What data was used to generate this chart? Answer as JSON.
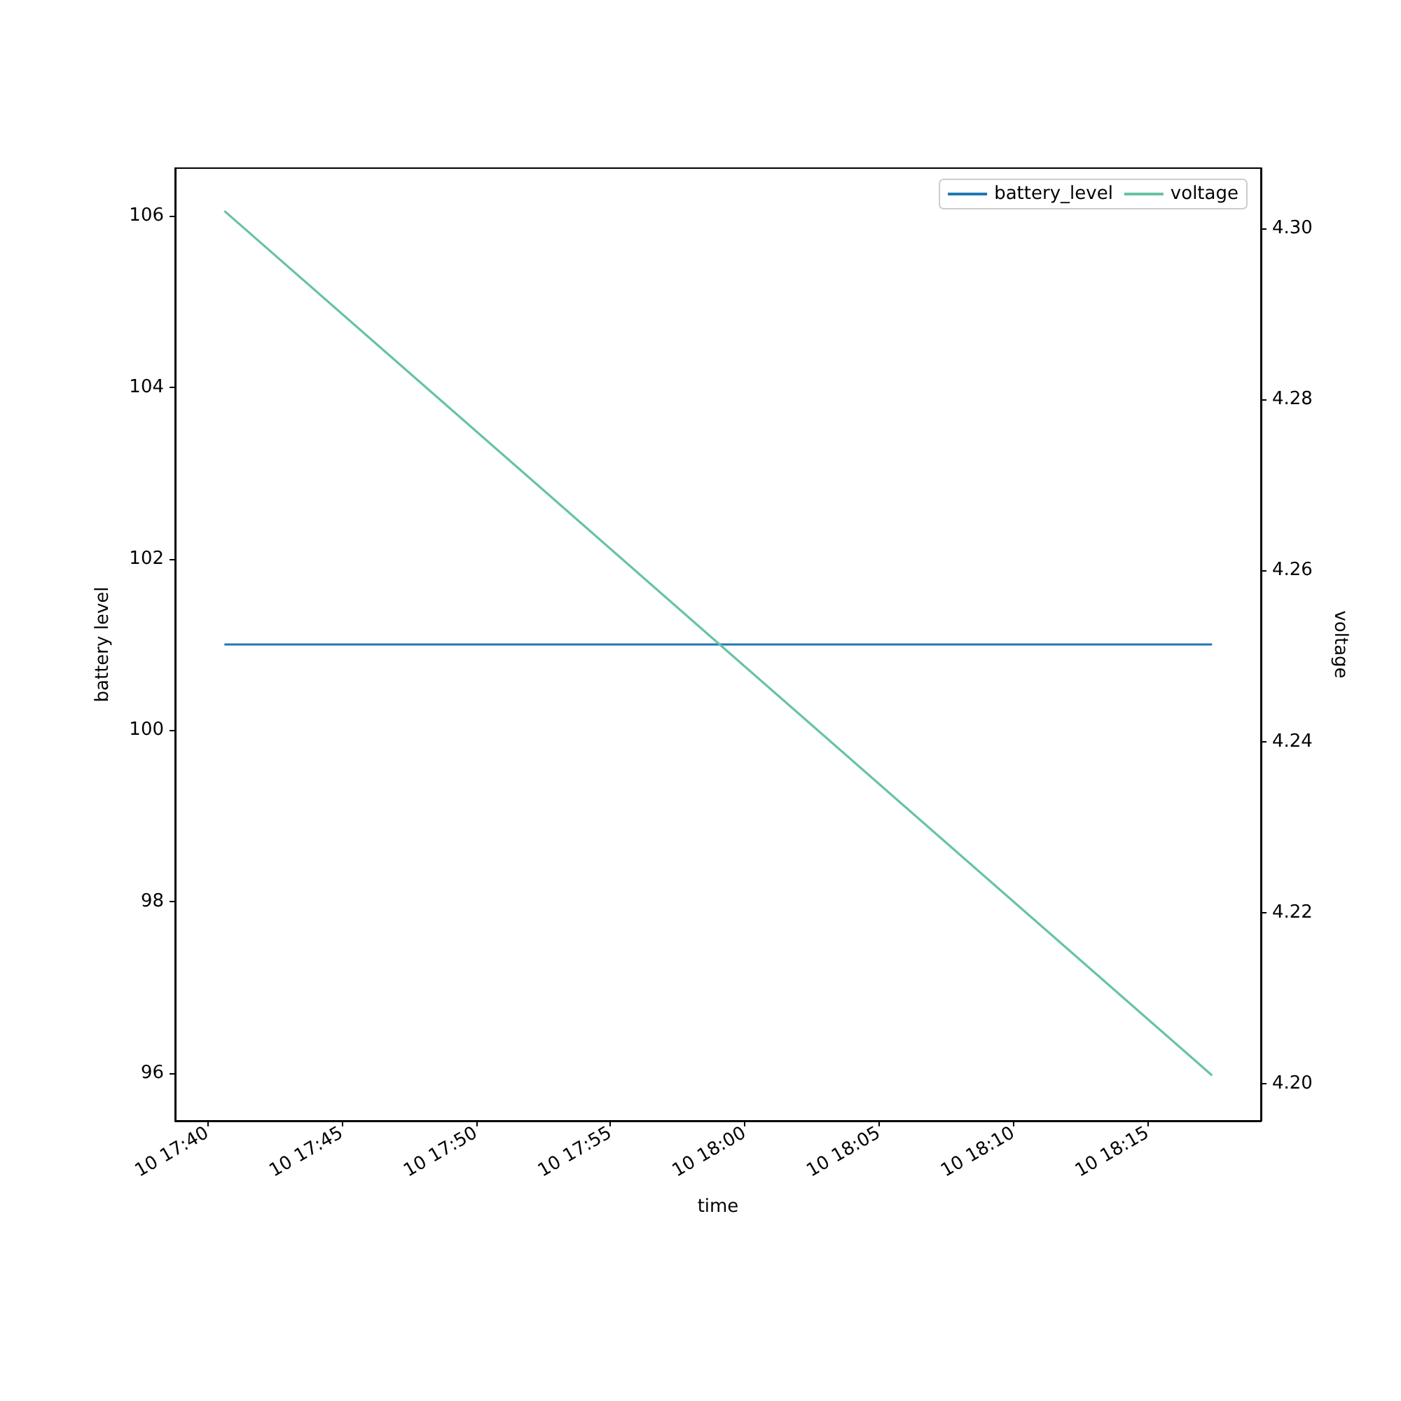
{
  "chart_data": {
    "type": "line",
    "xlabel": "time",
    "ylabel": "battery level",
    "y2label": "voltage",
    "xlim": [
      "--01-10T17:38:48",
      "--01-10T18:19:13"
    ],
    "xticks": [
      {
        "value": "--01-10T17:40",
        "label": "10 17:40"
      },
      {
        "value": "--01-10T17:45",
        "label": "10 17:45"
      },
      {
        "value": "--01-10T17:50",
        "label": "10 17:50"
      },
      {
        "value": "--01-10T17:55",
        "label": "10 17:55"
      },
      {
        "value": "--01-10T18:00",
        "label": "10 18:00"
      },
      {
        "value": "--01-10T18:05",
        "label": "10 18:05"
      },
      {
        "value": "--01-10T18:10",
        "label": "10 18:10"
      },
      {
        "value": "--01-10T18:15",
        "label": "10 18:15"
      }
    ],
    "ylim": [
      95.44,
      106.56
    ],
    "yticks": [
      96,
      98,
      100,
      102,
      104,
      106
    ],
    "y2lim": [
      4.1957,
      4.307
    ],
    "y2ticks": [
      {
        "value": 4.2,
        "label": "4.20"
      },
      {
        "value": 4.22,
        "label": "4.22"
      },
      {
        "value": 4.24,
        "label": "4.24"
      },
      {
        "value": 4.26,
        "label": "4.26"
      },
      {
        "value": 4.28,
        "label": "4.28"
      },
      {
        "value": 4.3,
        "label": "4.30"
      }
    ],
    "x": [
      "--01-10T17:40:38",
      "--01-10T18:17:24"
    ],
    "series": [
      {
        "name": "battery_level",
        "color": "#1f77b4",
        "values": [
          101,
          101
        ]
      },
      {
        "name": "voltage",
        "color": "#66c2a5",
        "values": [
          4.302,
          4.201
        ],
        "axis": "y2"
      }
    ],
    "legend": "top right",
    "grid": false
  }
}
